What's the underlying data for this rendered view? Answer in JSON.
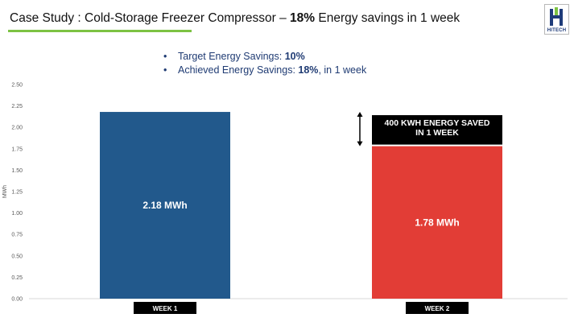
{
  "header": {
    "title_prefix": "Case Study : Cold-Storage Freezer Compressor –",
    "title_bold": "18%",
    "title_suffix": "Energy savings in 1 week",
    "logo_text": "HITECH"
  },
  "bullets": [
    {
      "label": "Target Energy Savings:",
      "value": "10%",
      "suffix": ""
    },
    {
      "label": "Achieved Energy Savings:",
      "value": "18%",
      "suffix": ", in 1 week"
    }
  ],
  "chart_data": {
    "type": "bar",
    "categories": [
      "WEEK 1",
      "WEEK 2"
    ],
    "values": [
      2.18,
      1.78
    ],
    "data_labels": [
      "2.18 MWh",
      "1.78 MWh"
    ],
    "colors": [
      "#22598c",
      "#e23d36"
    ],
    "ylabel": "MWh",
    "ylim": [
      0,
      2.5
    ],
    "yticks": [
      "0.00",
      "0.25",
      "0.50",
      "0.75",
      "1.00",
      "1.25",
      "1.50",
      "1.75",
      "2.00",
      "2.25",
      "2.50"
    ],
    "grid": false,
    "legend": "none",
    "annotation": {
      "line1": "400 KWH ENERGY SAVED",
      "line2": "IN 1 WEEK"
    }
  }
}
